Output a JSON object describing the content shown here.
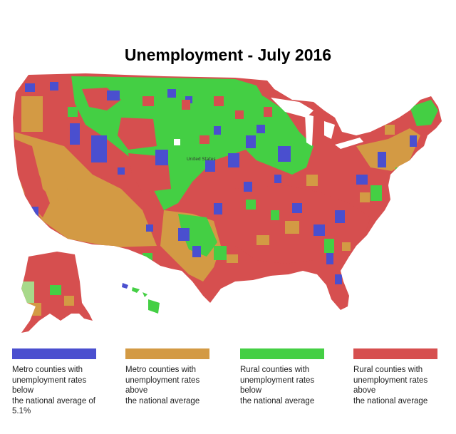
{
  "title": "Unemployment - July 2016",
  "map_label": "United States",
  "colors": {
    "metro_below": "#4a4fcf",
    "metro_above": "#d39a44",
    "rural_below": "#44cf44",
    "rural_above": "#d64f4f",
    "background": "#ffffff"
  },
  "legend": [
    {
      "key": "metro_below",
      "color": "#4a4fcf",
      "lines": [
        "Metro counties with",
        "unemployment rates below",
        "the national average of 5.1%"
      ]
    },
    {
      "key": "metro_above",
      "color": "#d39a44",
      "lines": [
        "Metro counties with",
        "unemployment rates above",
        "the national average"
      ]
    },
    {
      "key": "rural_below",
      "color": "#44cf44",
      "lines": [
        "Rural counties with",
        "unemployment rates below",
        "the national average"
      ]
    },
    {
      "key": "rural_above",
      "color": "#d64f4f",
      "lines": [
        "Rural counties with",
        "unemployment rates above",
        "the national average"
      ]
    }
  ]
}
